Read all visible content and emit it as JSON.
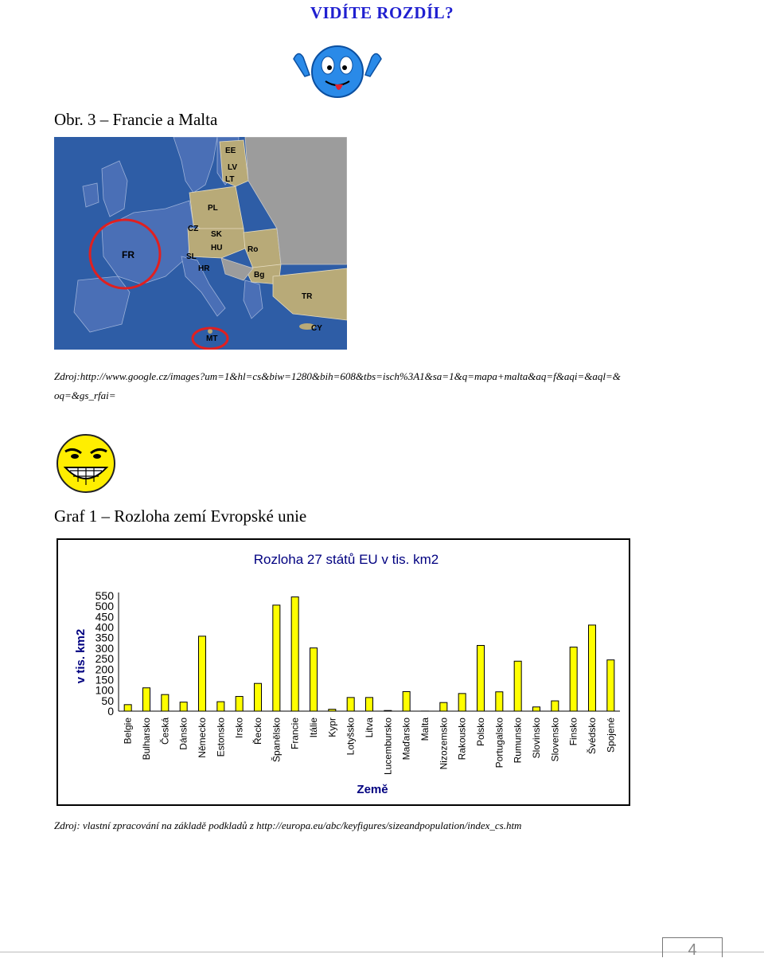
{
  "heading": "VIDÍTE ROZDÍL?",
  "figure_caption": "Obr. 3 – Francie a Malta",
  "map": {
    "labels": [
      "EE",
      "LV",
      "LT",
      "PL",
      "CZ",
      "SK",
      "HU",
      "SL",
      "HR",
      "FR",
      "Ro",
      "Bg",
      "TR",
      "CY",
      "MT"
    ]
  },
  "map_source": "Zdroj:http://www.google.cz/images?um=1&hl=cs&biw=1280&bih=608&tbs=isch%3A1&sa=1&q=mapa+malta&aq=f&aqi=&aql=& oq=&gs_rfai=",
  "graph_caption": "Graf 1 – Rozloha zemí Evropské unie",
  "chart_source": "Zdroj: vlastní zpracování na základě podkladů z http://europa.eu/abc/keyfigures/sizeandpopulation/index_cs.htm",
  "page_number": "4",
  "colors": {
    "heading": "#1f1fd0",
    "bar": "#ffff00",
    "map_sea": "#2e5da6",
    "map_eu_west": "#4a6fb6",
    "map_new": "#b8aa78",
    "circle": "#e02020"
  },
  "chart_data": {
    "type": "bar",
    "title": "Rozloha 27 států EU v tis. km2",
    "xlabel": "Země",
    "ylabel": "v tis. km2",
    "ylim": [
      0,
      550
    ],
    "yticks": [
      0,
      50,
      100,
      150,
      200,
      250,
      300,
      350,
      400,
      450,
      500,
      550
    ],
    "grid": false,
    "categories": [
      "Belgie",
      "Bulharsko",
      "Česká",
      "Dánsko",
      "Německo",
      "Estonsko",
      "Irsko",
      "Řecko",
      "Španělsko",
      "Francie",
      "Itálie",
      "Kypr",
      "Lotyšsko",
      "Litva",
      "Lucembursko",
      "Maďarsko",
      "Malta",
      "Nizozemsko",
      "Rakousko",
      "Polsko",
      "Portugalsko",
      "Rumunsko",
      "Slovinsko",
      "Slovensko",
      "Finsko",
      "Švédsko",
      "Spojené"
    ],
    "values": [
      31,
      111,
      79,
      43,
      357,
      45,
      70,
      132,
      505,
      544,
      301,
      9,
      65,
      65,
      3,
      93,
      0.3,
      41,
      84,
      313,
      92,
      238,
      20,
      49,
      305,
      410,
      244
    ]
  }
}
